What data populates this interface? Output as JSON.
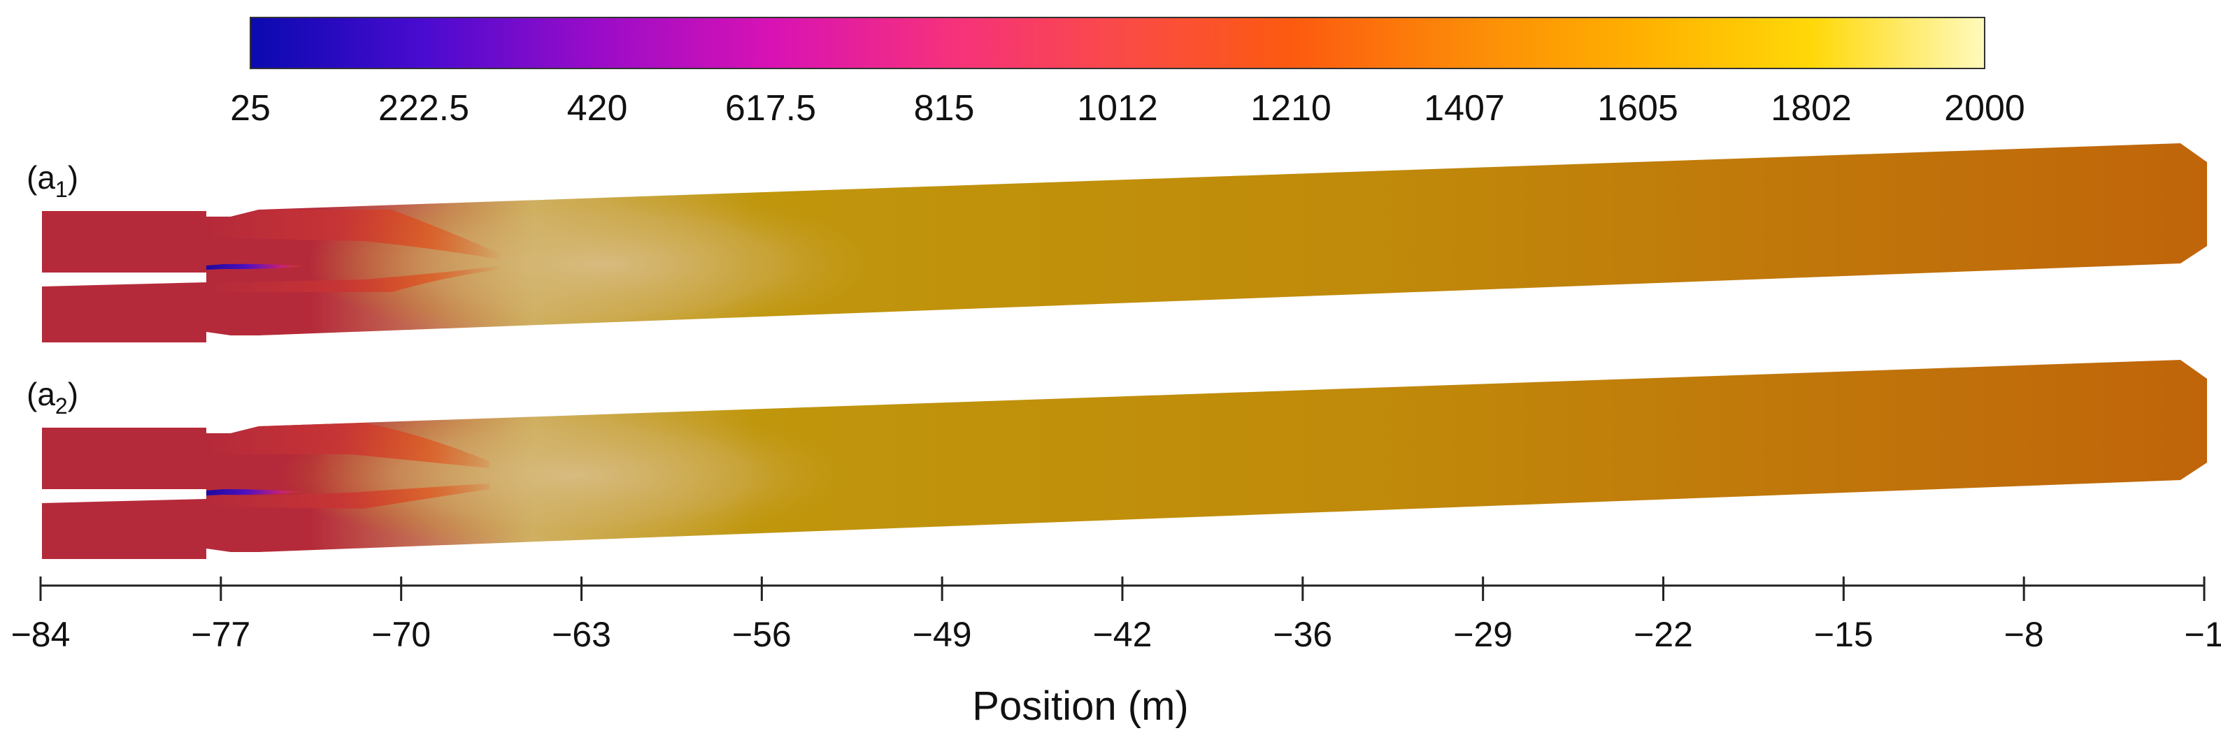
{
  "colorbar": {
    "ticks": [
      "25",
      "222.5",
      "420",
      "617.5",
      "815",
      "1012",
      "1210",
      "1407",
      "1605",
      "1802",
      "2000"
    ],
    "colors": [
      "#0a0ab0",
      "#4a0bd0",
      "#9a0cc8",
      "#d812b4",
      "#f5307e",
      "#fa4a48",
      "#fc5a10",
      "#fc8a08",
      "#ffb000",
      "#ffd808",
      "#fffabc"
    ]
  },
  "panels": [
    {
      "label_main": "(a",
      "label_sub": "1",
      "label_close": ")"
    },
    {
      "label_main": "(a",
      "label_sub": "2",
      "label_close": ")"
    }
  ],
  "axis": {
    "ticks": [
      "−84",
      "−77",
      "−70",
      "−63",
      "−56",
      "−49",
      "−42",
      "−36",
      "−29",
      "−22",
      "−15",
      "−8",
      "−1"
    ],
    "xlabel": "Position (m)"
  },
  "field_colors": {
    "inlet": "#b52a3a",
    "hot_core": "#d2b470",
    "bulk": "#c0960c",
    "outlet": "#c0640a",
    "flame_front": "#e0501a",
    "jet": "#1a0aa0"
  }
}
